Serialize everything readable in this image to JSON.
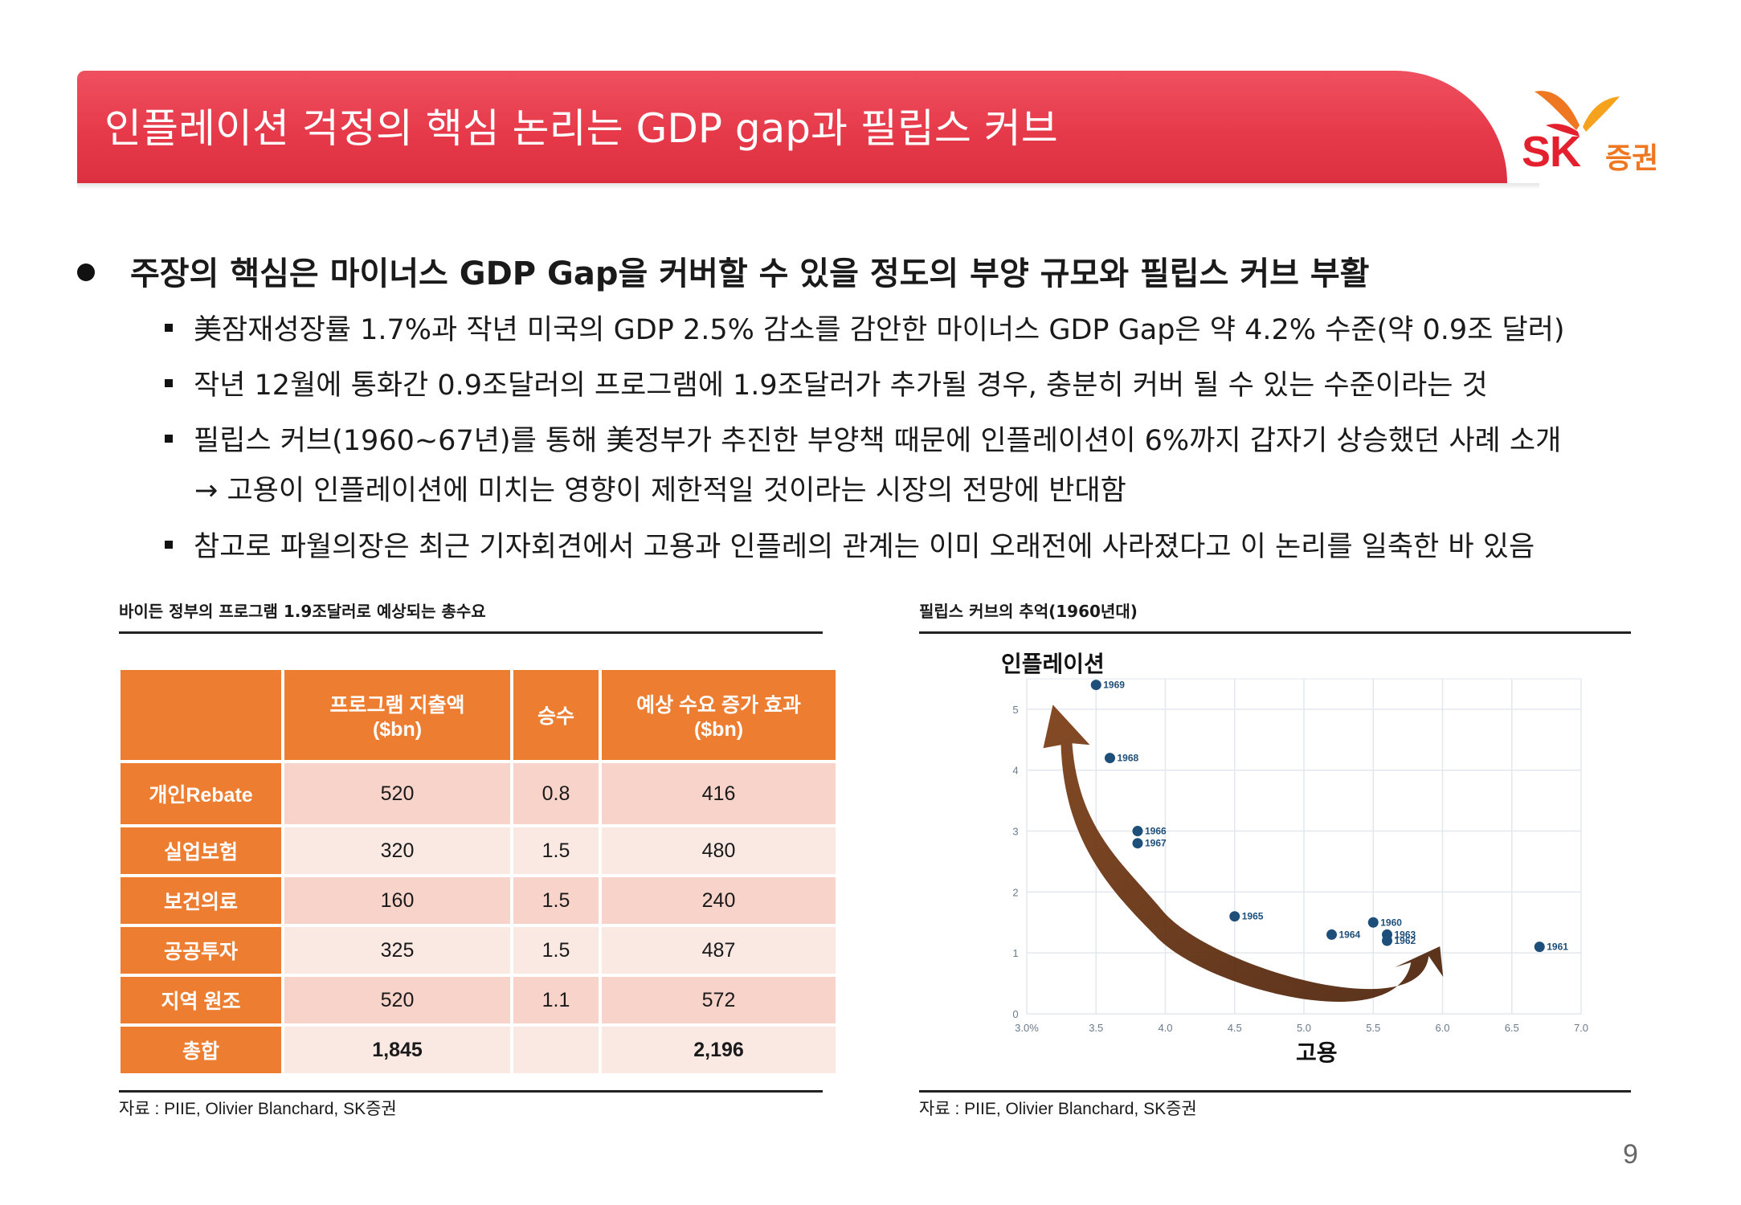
{
  "header": {
    "title": "인플레이션 걱정의 핵심 논리는 GDP gap과 필립스 커브",
    "logo_sk": "SK",
    "logo_kr": "증권"
  },
  "main_bullet": "주장의 핵심은 마이너스 GDP Gap을 커버할 수 있을 정도의 부양 규모와 필립스 커브 부활",
  "sub_bullets": [
    "美잠재성장률 1.7%과 작년 미국의 GDP 2.5% 감소를 감안한 마이너스 GDP Gap은 약 4.2% 수준(약 0.9조 달러)",
    "작년 12월에 통화간 0.9조달러의 프로그램에 1.9조달러가 추가될 경우, 충분히 커버 될 수 있는 수준이라는 것",
    "필립스 커브(1960~67년)를 통해 美정부가 추진한 부양책 때문에 인플레이션이 6%까지 갑자기 상승했던 사례 소개",
    "참고로 파월의장은 최근 기자회견에서 고용과 인플레의 관계는 이미 오래전에 사라졌다고 이 논리를 일축한 바 있음"
  ],
  "arrow_line": "→ 고용이 인플레이션에 미치는 영향이 제한적일 것이라는 시장의 전망에 반대함",
  "table": {
    "caption": "바이든 정부의 프로그램 1.9조달러로 예상되는 총수요",
    "headers": [
      "",
      "프로그램 지출액\n($bn)",
      "승수",
      "예상 수요 증가 효과\n($bn)"
    ],
    "rows": [
      {
        "label": "개인Rebate",
        "spend": "520",
        "mult": "0.8",
        "effect": "416"
      },
      {
        "label": "실업보험",
        "spend": "320",
        "mult": "1.5",
        "effect": "480"
      },
      {
        "label": "보건의료",
        "spend": "160",
        "mult": "1.5",
        "effect": "240"
      },
      {
        "label": "공공투자",
        "spend": "325",
        "mult": "1.5",
        "effect": "487"
      },
      {
        "label": "지역 원조",
        "spend": "520",
        "mult": "1.1",
        "effect": "572"
      },
      {
        "label": "총합",
        "spend": "1,845",
        "mult": "",
        "effect": "2,196"
      }
    ],
    "source": "자료 : PIIE, Olivier Blanchard, SK증권"
  },
  "chart_data": {
    "type": "scatter",
    "title": "필립스 커브의 추억(1960년대)",
    "xlabel": "고용",
    "ylabel": "인플레이션",
    "xlim": [
      3.0,
      7.0
    ],
    "ylim": [
      0,
      5.5
    ],
    "x_ticks": [
      "3.0%",
      "3.5",
      "4.0",
      "4.5",
      "5.0",
      "5.5",
      "6.0",
      "6.5",
      "7.0"
    ],
    "x_tick_values": [
      3.0,
      3.5,
      4.0,
      4.5,
      5.0,
      5.5,
      6.0,
      6.5,
      7.0
    ],
    "y_ticks": [
      "0",
      "1",
      "2",
      "3",
      "4",
      "5"
    ],
    "y_tick_values": [
      0,
      1,
      2,
      3,
      4,
      5
    ],
    "points": [
      {
        "label": "1969",
        "x": 3.5,
        "y": 5.4
      },
      {
        "label": "1968",
        "x": 3.6,
        "y": 4.2
      },
      {
        "label": "1966",
        "x": 3.8,
        "y": 3.0
      },
      {
        "label": "1967",
        "x": 3.8,
        "y": 2.8
      },
      {
        "label": "1965",
        "x": 4.5,
        "y": 1.6
      },
      {
        "label": "1964",
        "x": 5.2,
        "y": 1.3
      },
      {
        "label": "1960",
        "x": 5.5,
        "y": 1.5
      },
      {
        "label": "1963",
        "x": 5.6,
        "y": 1.3
      },
      {
        "label": "1962",
        "x": 5.6,
        "y": 1.2
      },
      {
        "label": "1961",
        "x": 6.7,
        "y": 1.1
      }
    ],
    "source": "자료 : PIIE, Olivier Blanchard, SK증권"
  },
  "page_number": "9"
}
